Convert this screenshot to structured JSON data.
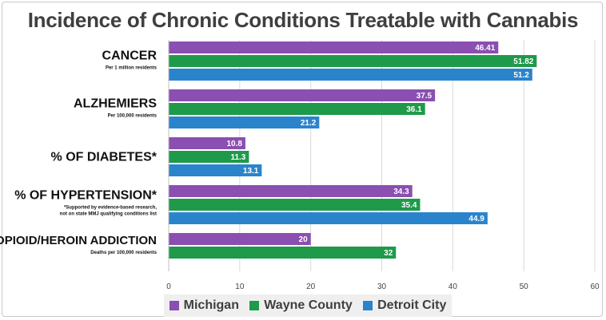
{
  "chart_data": {
    "type": "bar",
    "orientation": "horizontal",
    "title": "Incidence of Chronic Conditions Treatable with Cannabis",
    "categories": [
      {
        "label": "CANCER",
        "sublabel": [
          "Per 1 million residents"
        ]
      },
      {
        "label": "ALZHEMIERS",
        "sublabel": [
          "Per 100,000 residents"
        ]
      },
      {
        "label": "% OF DIABETES*",
        "sublabel": []
      },
      {
        "label": "% OF HYPERTENSION*",
        "sublabel": [
          "*Supported by evidence-based research,",
          "not on state MMJ qualifying conditions list"
        ]
      },
      {
        "label": "OPIOID/HEROIN ADDICTION",
        "sublabel": [
          "Deaths per 100,000 residents"
        ]
      }
    ],
    "series": [
      {
        "name": "Michigan",
        "color": "#8a4fb0",
        "values": [
          46.41,
          37.5,
          10.8,
          34.3,
          20
        ],
        "labels": [
          "46.41",
          "37.5",
          "10.8",
          "34.3",
          "20"
        ]
      },
      {
        "name": "Wayne County",
        "color": "#1f9a4a",
        "values": [
          51.82,
          36.1,
          11.3,
          35.4,
          32
        ],
        "labels": [
          "51.82",
          "36.1",
          "11.3",
          "35.4",
          "32"
        ]
      },
      {
        "name": "Detroit City",
        "color": "#2a84cc",
        "values": [
          51.2,
          21.2,
          13.1,
          44.9,
          null
        ],
        "labels": [
          "51.2",
          "21.2",
          "13.1",
          "44.9",
          null
        ]
      }
    ],
    "xlim": [
      0,
      60
    ],
    "xticks": [
      0,
      10,
      20,
      30,
      40,
      50,
      60
    ],
    "grid": true,
    "legend_position": "bottom"
  }
}
